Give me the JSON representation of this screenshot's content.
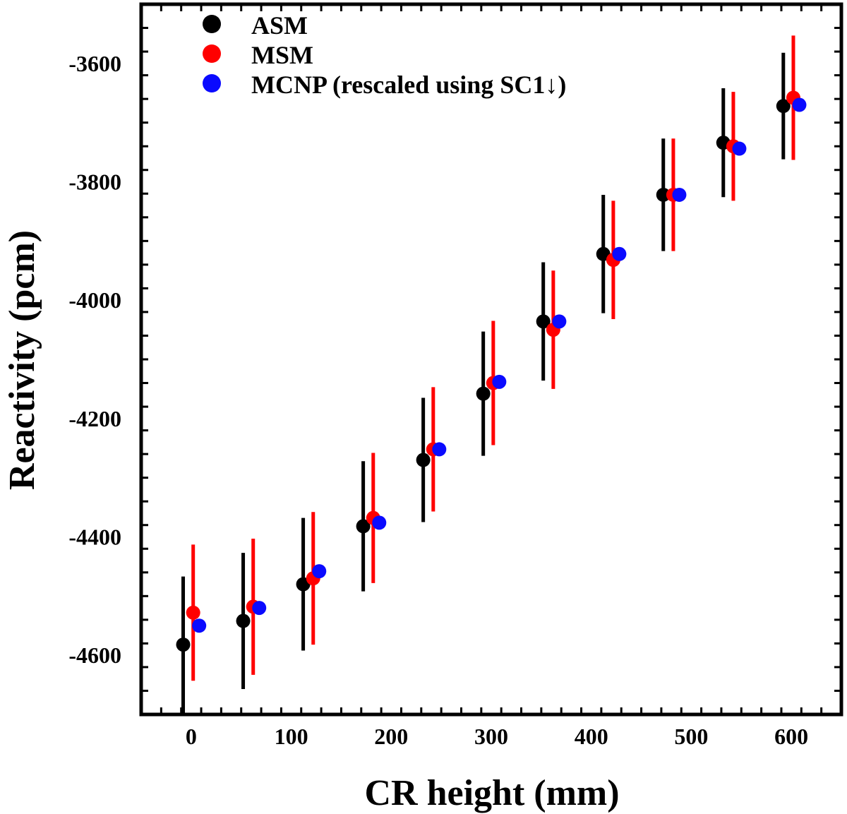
{
  "chart_data": {
    "type": "scatter",
    "title": "",
    "xlabel": "CR height (mm)",
    "ylabel": "Reactivity (pcm)",
    "xlim": [
      -50,
      650
    ],
    "ylim": [
      -4700,
      -3500
    ],
    "xticks": [
      0,
      100,
      200,
      300,
      400,
      500,
      600
    ],
    "yticks": [
      -4600,
      -4400,
      -4200,
      -4000,
      -3800,
      -3600
    ],
    "xtick_labels": [
      "0",
      "100",
      "200",
      "300",
      "400",
      "500",
      "600"
    ],
    "ytick_labels": [
      "-4600",
      "-4400",
      "-4200",
      "-4000",
      "-3800",
      "-3600"
    ],
    "legend_position": "top-left",
    "series": [
      {
        "name": "ASM",
        "color": "#000000",
        "x": [
          -8,
          52,
          112,
          172,
          232,
          292,
          352,
          412,
          472,
          532,
          592
        ],
        "y": [
          -4582,
          -4542,
          -4480,
          -4382,
          -4270,
          -4158,
          -4036,
          -3922,
          -3822,
          -3734,
          -3672
        ],
        "err": [
          115,
          115,
          112,
          110,
          105,
          105,
          100,
          100,
          95,
          92,
          90
        ]
      },
      {
        "name": "MSM",
        "color": "#ff0000",
        "x": [
          2,
          62,
          122,
          182,
          242,
          302,
          362,
          422,
          482,
          542,
          602
        ],
        "y": [
          -4528,
          -4518,
          -4470,
          -4368,
          -4252,
          -4140,
          -4050,
          -3932,
          -3822,
          -3740,
          -3658
        ],
        "err": [
          115,
          115,
          112,
          110,
          105,
          105,
          100,
          100,
          95,
          92,
          105
        ]
      },
      {
        "name": "MCNP (rescaled using SC1↓)",
        "color": "#0a0aff",
        "x": [
          8,
          68,
          128,
          188,
          248,
          308,
          368,
          428,
          488,
          548,
          608
        ],
        "y": [
          -4550,
          -4520,
          -4458,
          -4376,
          -4252,
          -4138,
          -4036,
          -3922,
          -3822,
          -3744,
          -3670
        ]
      }
    ]
  }
}
